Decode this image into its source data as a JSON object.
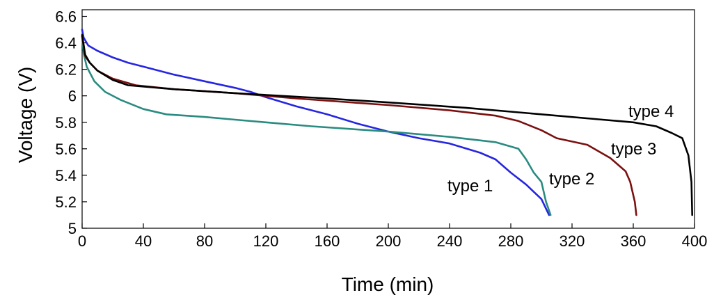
{
  "chart_data": {
    "type": "line",
    "xlabel": "Time (min)",
    "ylabel": "Voltage (V)",
    "xlim": [
      0,
      400
    ],
    "ylim": [
      5.0,
      6.65
    ],
    "xticks": [
      "0",
      "40",
      "80",
      "120",
      "160",
      "200",
      "240",
      "280",
      "320",
      "360",
      "400"
    ],
    "yticks": [
      "5",
      "5.2",
      "5.4",
      "5.6",
      "5.8",
      "6",
      "6.2",
      "6.4",
      "6.6"
    ],
    "grid": false,
    "series": [
      {
        "name": "type 1",
        "color": "#2626e0",
        "points": [
          [
            0,
            6.5
          ],
          [
            1,
            6.44
          ],
          [
            4,
            6.38
          ],
          [
            10,
            6.34
          ],
          [
            20,
            6.29
          ],
          [
            30,
            6.25
          ],
          [
            40,
            6.22
          ],
          [
            60,
            6.16
          ],
          [
            80,
            6.11
          ],
          [
            100,
            6.06
          ],
          [
            110,
            6.03
          ],
          [
            120,
            5.99
          ],
          [
            140,
            5.92
          ],
          [
            160,
            5.86
          ],
          [
            180,
            5.79
          ],
          [
            200,
            5.73
          ],
          [
            220,
            5.68
          ],
          [
            240,
            5.64
          ],
          [
            260,
            5.57
          ],
          [
            270,
            5.52
          ],
          [
            280,
            5.42
          ],
          [
            290,
            5.33
          ],
          [
            300,
            5.22
          ],
          [
            305,
            5.1
          ]
        ]
      },
      {
        "name": "type 2",
        "color": "#2a8b80",
        "points": [
          [
            0,
            6.45
          ],
          [
            1,
            6.32
          ],
          [
            3,
            6.22
          ],
          [
            8,
            6.11
          ],
          [
            15,
            6.03
          ],
          [
            25,
            5.97
          ],
          [
            40,
            5.9
          ],
          [
            55,
            5.86
          ],
          [
            80,
            5.84
          ],
          [
            100,
            5.82
          ],
          [
            120,
            5.8
          ],
          [
            150,
            5.77
          ],
          [
            200,
            5.73
          ],
          [
            240,
            5.69
          ],
          [
            270,
            5.65
          ],
          [
            285,
            5.6
          ],
          [
            290,
            5.52
          ],
          [
            295,
            5.42
          ],
          [
            300,
            5.35
          ],
          [
            303,
            5.2
          ],
          [
            306,
            5.1
          ]
        ]
      },
      {
        "name": "type 3",
        "color": "#7a1010",
        "points": [
          [
            0,
            6.45
          ],
          [
            2,
            6.3
          ],
          [
            5,
            6.25
          ],
          [
            10,
            6.19
          ],
          [
            20,
            6.13
          ],
          [
            35,
            6.08
          ],
          [
            60,
            6.05
          ],
          [
            100,
            6.02
          ],
          [
            140,
            5.98
          ],
          [
            200,
            5.93
          ],
          [
            240,
            5.89
          ],
          [
            270,
            5.85
          ],
          [
            285,
            5.81
          ],
          [
            300,
            5.74
          ],
          [
            310,
            5.68
          ],
          [
            330,
            5.63
          ],
          [
            345,
            5.53
          ],
          [
            355,
            5.43
          ],
          [
            358,
            5.35
          ],
          [
            361,
            5.2
          ],
          [
            362,
            5.1
          ]
        ]
      },
      {
        "name": "type 4",
        "color": "#000000",
        "points": [
          [
            0,
            6.46
          ],
          [
            2,
            6.31
          ],
          [
            5,
            6.25
          ],
          [
            10,
            6.19
          ],
          [
            20,
            6.12
          ],
          [
            30,
            6.08
          ],
          [
            60,
            6.05
          ],
          [
            100,
            6.02
          ],
          [
            160,
            5.98
          ],
          [
            200,
            5.95
          ],
          [
            250,
            5.91
          ],
          [
            300,
            5.86
          ],
          [
            340,
            5.82
          ],
          [
            360,
            5.8
          ],
          [
            375,
            5.77
          ],
          [
            385,
            5.72
          ],
          [
            392,
            5.68
          ],
          [
            396,
            5.55
          ],
          [
            398,
            5.35
          ],
          [
            398.5,
            5.1
          ]
        ]
      }
    ],
    "annotations": [
      "type 1",
      "type 2",
      "type 3",
      "type 4"
    ]
  }
}
